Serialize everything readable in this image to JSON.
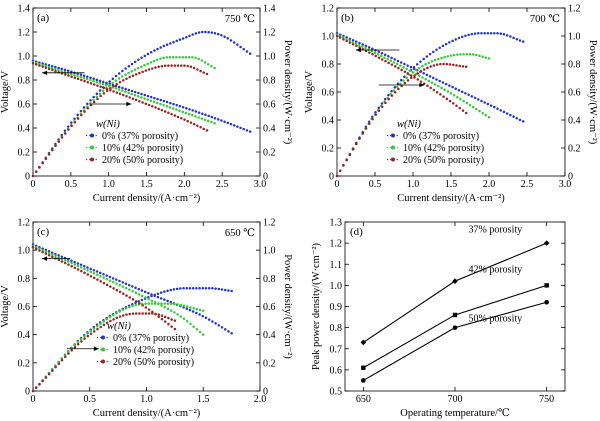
{
  "colors": {
    "s0": "#2233cc",
    "s10": "#33cc33",
    "s20": "#992222",
    "d": "#000000"
  },
  "chart_data": [
    {
      "id": "a",
      "type": "line",
      "panel_label": "(a)",
      "annotation": "750 ℃",
      "xlabel": "Current density/(A·cm⁻²)",
      "ylabel": "Voltage/V",
      "y2label": "Power density/(W·cm⁻²)",
      "xlim": [
        0,
        3.0
      ],
      "ylim": [
        0,
        1.4
      ],
      "y2lim": [
        0,
        1.4
      ],
      "xticks": [
        "0",
        "0.5",
        "1.0",
        "1.5",
        "2.0",
        "2.5",
        "3.0"
      ],
      "yticks": [
        "0",
        "0.2",
        "0.4",
        "0.6",
        "0.8",
        "1.0",
        "1.2",
        "1.4"
      ],
      "y2ticks": [
        "0",
        "0.2",
        "0.4",
        "0.6",
        "0.8",
        "1.0",
        "1.2",
        "1.4"
      ],
      "legend_title": "w(Ni)",
      "legend_position": "center-right",
      "series": [
        {
          "name": "0% (37% porosity)",
          "color_key": "s0",
          "voltage": [
            [
              0,
              0.96
            ],
            [
              0.5,
              0.87
            ],
            [
              1.0,
              0.77
            ],
            [
              1.5,
              0.67
            ],
            [
              2.0,
              0.57
            ],
            [
              2.5,
              0.46
            ],
            [
              2.87,
              0.37
            ]
          ],
          "power": [
            [
              0,
              0
            ],
            [
              0.5,
              0.44
            ],
            [
              1.0,
              0.78
            ],
            [
              1.5,
              1.01
            ],
            [
              2.0,
              1.15
            ],
            [
              2.25,
              1.2
            ],
            [
              2.5,
              1.17
            ],
            [
              2.87,
              1.02
            ]
          ]
        },
        {
          "name": "10% (42% porosity)",
          "color_key": "s10",
          "voltage": [
            [
              0,
              0.95
            ],
            [
              0.5,
              0.85
            ],
            [
              1.0,
              0.75
            ],
            [
              1.5,
              0.64
            ],
            [
              2.0,
              0.53
            ],
            [
              2.4,
              0.44
            ]
          ],
          "power": [
            [
              0,
              0
            ],
            [
              0.5,
              0.42
            ],
            [
              1.0,
              0.75
            ],
            [
              1.5,
              0.93
            ],
            [
              1.8,
              0.99
            ],
            [
              2.1,
              0.99
            ],
            [
              2.4,
              0.9
            ]
          ]
        },
        {
          "name": "20% (50% porosity)",
          "color_key": "s20",
          "voltage": [
            [
              0,
              0.94
            ],
            [
              0.5,
              0.83
            ],
            [
              1.0,
              0.72
            ],
            [
              1.5,
              0.6
            ],
            [
              2.0,
              0.47
            ],
            [
              2.3,
              0.38
            ]
          ],
          "power": [
            [
              0,
              0
            ],
            [
              0.5,
              0.41
            ],
            [
              1.0,
              0.72
            ],
            [
              1.5,
              0.88
            ],
            [
              1.8,
              0.92
            ],
            [
              2.0,
              0.92
            ],
            [
              2.3,
              0.85
            ]
          ]
        }
      ]
    },
    {
      "id": "b",
      "type": "line",
      "panel_label": "(b)",
      "annotation": "700 ℃",
      "xlabel": "Current density/(A·cm⁻²)",
      "ylabel": "Voltage/V",
      "y2label": "Power density/(W·cm⁻²)",
      "xlim": [
        0,
        3.0
      ],
      "ylim": [
        0,
        1.2
      ],
      "y2lim": [
        0,
        1.2
      ],
      "xticks": [
        "0",
        "0.5",
        "1.0",
        "1.5",
        "2.0",
        "2.5",
        "3.0"
      ],
      "yticks": [
        "0",
        "0.2",
        "0.4",
        "0.6",
        "0.8",
        "1.0",
        "1.2"
      ],
      "y2ticks": [
        "0",
        "0.2",
        "0.4",
        "0.6",
        "0.8",
        "1.0",
        "1.2"
      ],
      "legend_title": "w(Ni)",
      "legend_position": "center-right",
      "series": [
        {
          "name": "0% (37% porosity)",
          "color_key": "s0",
          "voltage": [
            [
              0,
              1.02
            ],
            [
              0.5,
              0.9
            ],
            [
              1.0,
              0.77
            ],
            [
              1.5,
              0.64
            ],
            [
              2.0,
              0.51
            ],
            [
              2.45,
              0.39
            ]
          ],
          "power": [
            [
              0,
              0
            ],
            [
              0.5,
              0.45
            ],
            [
              1.0,
              0.77
            ],
            [
              1.5,
              0.96
            ],
            [
              1.9,
              1.02
            ],
            [
              2.1,
              1.02
            ],
            [
              2.45,
              0.96
            ]
          ]
        },
        {
          "name": "10% (42% porosity)",
          "color_key": "s10",
          "voltage": [
            [
              0,
              1.01
            ],
            [
              0.5,
              0.88
            ],
            [
              1.0,
              0.74
            ],
            [
              1.5,
              0.59
            ],
            [
              2.0,
              0.42
            ]
          ],
          "power": [
            [
              0,
              0
            ],
            [
              0.5,
              0.44
            ],
            [
              1.0,
              0.74
            ],
            [
              1.5,
              0.86
            ],
            [
              1.75,
              0.87
            ],
            [
              2.0,
              0.84
            ]
          ]
        },
        {
          "name": "20% (50% porosity)",
          "color_key": "s20",
          "voltage": [
            [
              0,
              1.0
            ],
            [
              0.5,
              0.86
            ],
            [
              1.0,
              0.71
            ],
            [
              1.5,
              0.53
            ],
            [
              1.7,
              0.45
            ]
          ],
          "power": [
            [
              0,
              0
            ],
            [
              0.5,
              0.43
            ],
            [
              1.0,
              0.71
            ],
            [
              1.4,
              0.8
            ],
            [
              1.7,
              0.78
            ]
          ]
        }
      ]
    },
    {
      "id": "c",
      "type": "line",
      "panel_label": "(c)",
      "annotation": "650 ℃",
      "xlabel": "Current density/(A·cm⁻²)",
      "ylabel": "Voltage/V",
      "y2label": "Power density/(W·cm⁻²)",
      "xlim": [
        0,
        2.0
      ],
      "ylim": [
        0,
        1.2
      ],
      "y2lim": [
        0,
        1.2
      ],
      "xticks": [
        "0",
        "0.5",
        "1.0",
        "1.5",
        "2.0"
      ],
      "yticks": [
        "0",
        "0.2",
        "0.4",
        "0.6",
        "0.8",
        "1.0",
        "1.2"
      ],
      "y2ticks": [
        "0",
        "0.2",
        "0.4",
        "0.6",
        "0.8",
        "1.0",
        "1.2"
      ],
      "legend_title": "w(Ni)",
      "legend_position": "bottom-right",
      "series": [
        {
          "name": "0% (37% porosity)",
          "color_key": "s0",
          "voltage": [
            [
              0,
              1.04
            ],
            [
              0.5,
              0.87
            ],
            [
              1.0,
              0.7
            ],
            [
              1.5,
              0.53
            ],
            [
              1.75,
              0.41
            ]
          ],
          "power": [
            [
              0,
              0
            ],
            [
              0.5,
              0.43
            ],
            [
              1.0,
              0.66
            ],
            [
              1.35,
              0.73
            ],
            [
              1.55,
              0.73
            ],
            [
              1.75,
              0.71
            ]
          ]
        },
        {
          "name": "10% (42% porosity)",
          "color_key": "s10",
          "voltage": [
            [
              0,
              1.03
            ],
            [
              0.5,
              0.85
            ],
            [
              1.0,
              0.66
            ],
            [
              1.3,
              0.53
            ],
            [
              1.5,
              0.4
            ]
          ],
          "power": [
            [
              0,
              0
            ],
            [
              0.5,
              0.42
            ],
            [
              1.0,
              0.62
            ],
            [
              1.2,
              0.62
            ],
            [
              1.5,
              0.57
            ]
          ]
        },
        {
          "name": "20% (50% porosity)",
          "color_key": "s20",
          "voltage": [
            [
              0,
              1.02
            ],
            [
              0.5,
              0.82
            ],
            [
              1.0,
              0.59
            ],
            [
              1.25,
              0.44
            ]
          ],
          "power": [
            [
              0,
              0
            ],
            [
              0.5,
              0.4
            ],
            [
              0.9,
              0.55
            ],
            [
              1.05,
              0.55
            ],
            [
              1.25,
              0.5
            ]
          ]
        }
      ]
    },
    {
      "id": "d",
      "type": "line",
      "panel_label": "(d)",
      "xlabel": "Operating temperature/℃",
      "ylabel": "Peak power density/(W·cm⁻²)",
      "xlim": [
        640,
        760
      ],
      "ylim": [
        0.5,
        1.3
      ],
      "x": [
        650,
        700,
        750
      ],
      "xticks": [
        "650",
        "700",
        "750"
      ],
      "yticks": [
        "0.5",
        "0.6",
        "0.7",
        "0.8",
        "0.9",
        "1.0",
        "1.1",
        "1.2",
        "1.3"
      ],
      "series": [
        {
          "name": "37% porosity",
          "marker": "diamond",
          "values": [
            0.73,
            1.02,
            1.2
          ]
        },
        {
          "name": "42% porosity",
          "marker": "square",
          "values": [
            0.61,
            0.86,
            1.0
          ]
        },
        {
          "name": "50% porosity",
          "marker": "circle",
          "values": [
            0.55,
            0.8,
            0.92
          ]
        }
      ]
    }
  ]
}
